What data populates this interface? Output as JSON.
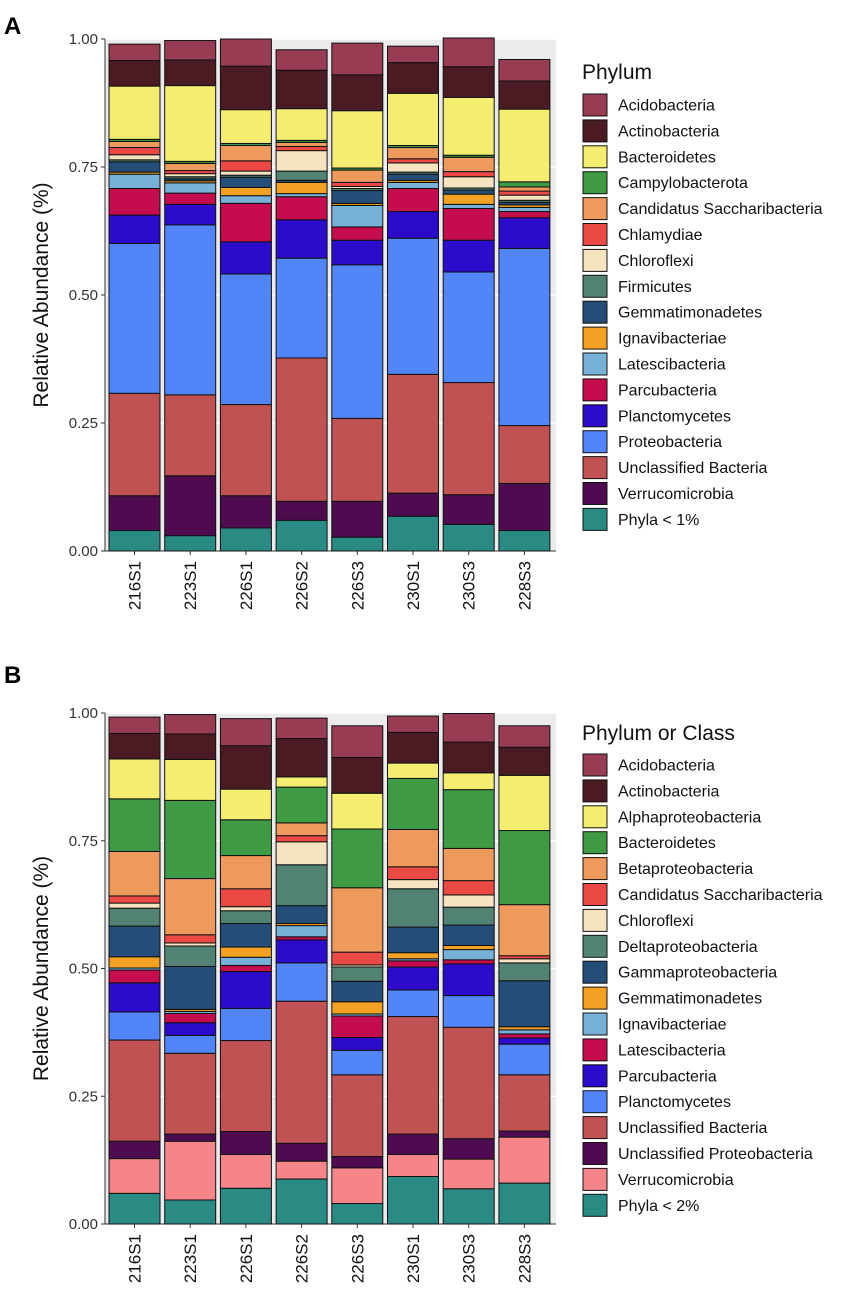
{
  "chart_data": [
    {
      "panel": "A",
      "type": "bar",
      "stacked": true,
      "xlabel": "",
      "ylabel": "Relative Abundance (%)",
      "ylim": [
        0,
        1
      ],
      "yticks": [
        "0.00",
        "0.25",
        "0.50",
        "0.75",
        "1.00"
      ],
      "grid": true,
      "legend_title": "Phylum",
      "legend_position": "right",
      "categories": [
        "216S1",
        "223S1",
        "226S1",
        "226S2",
        "226S3",
        "230S1",
        "230S3",
        "228S3"
      ],
      "series": [
        {
          "name": "Phyla < 1%",
          "color": "#2a8a84",
          "values": [
            0.04,
            0.03,
            0.045,
            0.06,
            0.027,
            0.068,
            0.052,
            0.04
          ]
        },
        {
          "name": "Verrucomicrobia",
          "color": "#4f0b4f",
          "values": [
            0.068,
            0.117,
            0.063,
            0.037,
            0.07,
            0.045,
            0.058,
            0.092
          ]
        },
        {
          "name": "Unclassified Bacteria",
          "color": "#c15254",
          "values": [
            0.2,
            0.158,
            0.178,
            0.28,
            0.162,
            0.232,
            0.219,
            0.113
          ]
        },
        {
          "name": "Proteobacteria",
          "color": "#5285f8",
          "values": [
            0.293,
            0.332,
            0.255,
            0.195,
            0.3,
            0.266,
            0.216,
            0.346
          ]
        },
        {
          "name": "Planctomycetes",
          "color": "#2c0bcd",
          "values": [
            0.055,
            0.04,
            0.063,
            0.075,
            0.048,
            0.052,
            0.062,
            0.06
          ]
        },
        {
          "name": "Parcubacteria",
          "color": "#c50c4e",
          "values": [
            0.052,
            0.022,
            0.075,
            0.045,
            0.026,
            0.045,
            0.062,
            0.012
          ]
        },
        {
          "name": "Latescibacteria",
          "color": "#78b1d8",
          "values": [
            0.028,
            0.02,
            0.015,
            0.006,
            0.042,
            0.012,
            0.008,
            0.008
          ]
        },
        {
          "name": "Ignavibacteriae",
          "color": "#f3a122",
          "values": [
            0.004,
            0.004,
            0.016,
            0.022,
            0.004,
            0.004,
            0.02,
            0.005
          ]
        },
        {
          "name": "Gemmatimonadetes",
          "color": "#244e77",
          "values": [
            0.02,
            0.004,
            0.02,
            0.004,
            0.025,
            0.012,
            0.008,
            0.005
          ]
        },
        {
          "name": "Firmicutes",
          "color": "#528274",
          "values": [
            0.004,
            0.004,
            0.004,
            0.018,
            0.004,
            0.004,
            0.004,
            0.004
          ]
        },
        {
          "name": "Chloroflexi",
          "color": "#f6e3c0",
          "values": [
            0.01,
            0.006,
            0.008,
            0.04,
            0.004,
            0.018,
            0.022,
            0.01
          ]
        },
        {
          "name": "Chlamydiae",
          "color": "#eb4a44",
          "values": [
            0.014,
            0.006,
            0.02,
            0.008,
            0.008,
            0.008,
            0.01,
            0.008
          ]
        },
        {
          "name": "Candidatus Saccharibacteria",
          "color": "#ee9a5d",
          "values": [
            0.012,
            0.014,
            0.03,
            0.008,
            0.024,
            0.022,
            0.028,
            0.008
          ]
        },
        {
          "name": "Campylobacterota",
          "color": "#3e9a43",
          "values": [
            0.004,
            0.004,
            0.004,
            0.004,
            0.004,
            0.004,
            0.004,
            0.01
          ]
        },
        {
          "name": "Bacteroidetes",
          "color": "#f4ed70",
          "values": [
            0.104,
            0.148,
            0.066,
            0.062,
            0.112,
            0.102,
            0.113,
            0.142
          ]
        },
        {
          "name": "Actinobacteria",
          "color": "#4a1b22",
          "values": [
            0.05,
            0.05,
            0.085,
            0.075,
            0.07,
            0.06,
            0.06,
            0.055
          ]
        },
        {
          "name": "Acidobacteria",
          "color": "#973c52",
          "values": [
            0.032,
            0.038,
            0.053,
            0.04,
            0.062,
            0.032,
            0.056,
            0.042
          ]
        }
      ]
    },
    {
      "panel": "B",
      "type": "bar",
      "stacked": true,
      "xlabel": "",
      "ylabel": "Relative Abundance (%)",
      "ylim": [
        0,
        1
      ],
      "yticks": [
        "0.00",
        "0.25",
        "0.50",
        "0.75",
        "1.00"
      ],
      "grid": true,
      "legend_title": "Phylum or Class",
      "legend_position": "right",
      "categories": [
        "216S1",
        "223S1",
        "226S1",
        "226S2",
        "226S3",
        "230S1",
        "230S3",
        "228S3"
      ],
      "series": [
        {
          "name": "Phyla < 2%",
          "color": "#2a8a84",
          "values": [
            0.06,
            0.047,
            0.07,
            0.088,
            0.04,
            0.093,
            0.069,
            0.08
          ]
        },
        {
          "name": "Verrucomicrobia",
          "color": "#f6858a",
          "values": [
            0.068,
            0.115,
            0.066,
            0.035,
            0.07,
            0.043,
            0.058,
            0.09
          ]
        },
        {
          "name": "Unclassified Proteobacteria",
          "color": "#4f0b4f",
          "values": [
            0.034,
            0.014,
            0.045,
            0.035,
            0.022,
            0.04,
            0.04,
            0.012
          ]
        },
        {
          "name": "Unclassified Bacteria",
          "color": "#c15254",
          "values": [
            0.198,
            0.158,
            0.178,
            0.278,
            0.16,
            0.23,
            0.218,
            0.11
          ]
        },
        {
          "name": "Planctomycetes",
          "color": "#5285f8",
          "values": [
            0.055,
            0.035,
            0.063,
            0.075,
            0.048,
            0.052,
            0.062,
            0.06
          ]
        },
        {
          "name": "Parcubacteria",
          "color": "#2c0bcd",
          "values": [
            0.057,
            0.025,
            0.072,
            0.045,
            0.025,
            0.045,
            0.062,
            0.012
          ]
        },
        {
          "name": "Latescibacteria",
          "color": "#c50c4e",
          "values": [
            0.025,
            0.018,
            0.012,
            0.006,
            0.042,
            0.012,
            0.008,
            0.008
          ]
        },
        {
          "name": "Ignavibacteriae",
          "color": "#78b1d8",
          "values": [
            0.004,
            0.004,
            0.016,
            0.022,
            0.004,
            0.004,
            0.02,
            0.008
          ]
        },
        {
          "name": "Gemmatimonadetes",
          "color": "#f3a122",
          "values": [
            0.022,
            0.004,
            0.02,
            0.004,
            0.024,
            0.012,
            0.008,
            0.006
          ]
        },
        {
          "name": "Gammaproteobacteria",
          "color": "#244e77",
          "values": [
            0.06,
            0.084,
            0.046,
            0.035,
            0.04,
            0.05,
            0.04,
            0.09
          ]
        },
        {
          "name": "Deltaproteobacteria",
          "color": "#528274",
          "values": [
            0.035,
            0.04,
            0.025,
            0.08,
            0.028,
            0.075,
            0.035,
            0.035
          ]
        },
        {
          "name": "Chloroflexi",
          "color": "#f6e3c0",
          "values": [
            0.01,
            0.006,
            0.008,
            0.045,
            0.004,
            0.018,
            0.024,
            0.008
          ]
        },
        {
          "name": "Candidatus Saccharibacteria",
          "color": "#eb4a44",
          "values": [
            0.014,
            0.016,
            0.035,
            0.012,
            0.025,
            0.025,
            0.028,
            0.006
          ]
        },
        {
          "name": "Betaproteobacteria",
          "color": "#ee9a5d",
          "values": [
            0.087,
            0.11,
            0.065,
            0.025,
            0.126,
            0.073,
            0.063,
            0.1
          ]
        },
        {
          "name": "Bacteroidetes",
          "color": "#3e9a43",
          "values": [
            0.103,
            0.153,
            0.07,
            0.07,
            0.115,
            0.1,
            0.115,
            0.145
          ]
        },
        {
          "name": "Alphaproteobacteria",
          "color": "#f4ed70",
          "values": [
            0.078,
            0.08,
            0.06,
            0.02,
            0.07,
            0.03,
            0.033,
            0.108
          ]
        },
        {
          "name": "Actinobacteria",
          "color": "#4a1b22",
          "values": [
            0.05,
            0.05,
            0.085,
            0.075,
            0.07,
            0.06,
            0.06,
            0.055
          ]
        },
        {
          "name": "Acidobacteria",
          "color": "#973c52",
          "values": [
            0.032,
            0.038,
            0.053,
            0.04,
            0.062,
            0.032,
            0.056,
            0.042
          ]
        }
      ]
    }
  ]
}
